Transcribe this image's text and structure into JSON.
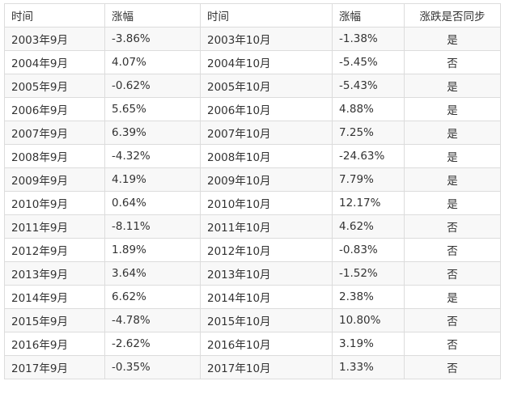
{
  "table": {
    "headers": [
      "时间",
      "涨幅",
      "时间",
      "涨幅",
      "涨跌是否同步"
    ],
    "rows": [
      [
        "2003年9月",
        "-3.86%",
        "2003年10月",
        "-1.38%",
        "是"
      ],
      [
        "2004年9月",
        "4.07%",
        "2004年10月",
        "-5.45%",
        "否"
      ],
      [
        "2005年9月",
        "-0.62%",
        "2005年10月",
        "-5.43%",
        "是"
      ],
      [
        "2006年9月",
        "5.65%",
        "2006年10月",
        "4.88%",
        "是"
      ],
      [
        "2007年9月",
        "6.39%",
        "2007年10月",
        "7.25%",
        "是"
      ],
      [
        "2008年9月",
        "-4.32%",
        "2008年10月",
        "-24.63%",
        "是"
      ],
      [
        "2009年9月",
        "4.19%",
        "2009年10月",
        "7.79%",
        "是"
      ],
      [
        "2010年9月",
        "0.64%",
        "2010年10月",
        "12.17%",
        "是"
      ],
      [
        "2011年9月",
        "-8.11%",
        "2011年10月",
        "4.62%",
        "否"
      ],
      [
        "2012年9月",
        "1.89%",
        "2012年10月",
        "-0.83%",
        "否"
      ],
      [
        "2013年9月",
        "3.64%",
        "2013年10月",
        "-1.52%",
        "否"
      ],
      [
        "2014年9月",
        "6.62%",
        "2014年10月",
        "2.38%",
        "是"
      ],
      [
        "2015年9月",
        "-4.78%",
        "2015年10月",
        "10.80%",
        "否"
      ],
      [
        "2016年9月",
        "-2.62%",
        "2016年10月",
        "3.19%",
        "否"
      ],
      [
        "2017年9月",
        "-0.35%",
        "2017年10月",
        "1.33%",
        "否"
      ]
    ]
  }
}
